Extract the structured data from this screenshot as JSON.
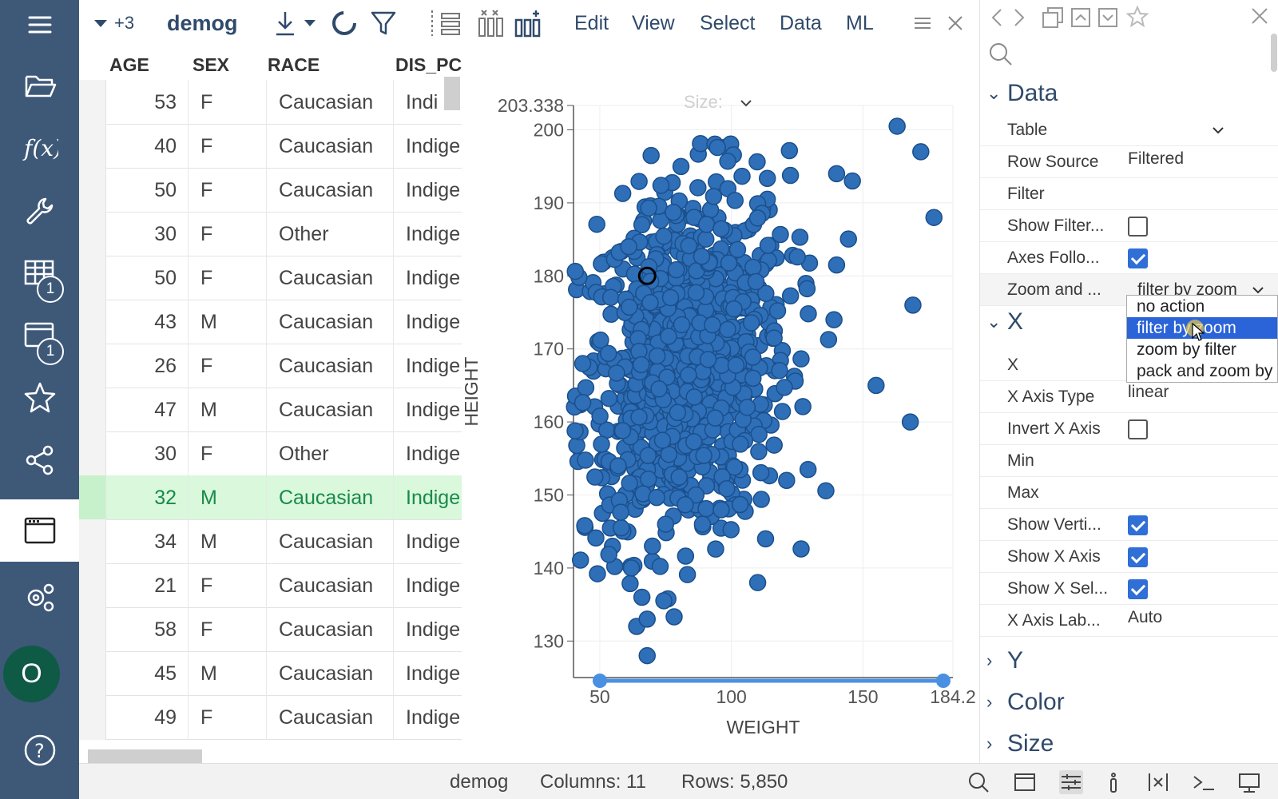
{
  "sidebar": {
    "items": [
      {
        "name": "hamburger-icon"
      },
      {
        "name": "folder-open-icon"
      },
      {
        "name": "function-icon"
      },
      {
        "name": "wrench-icon"
      },
      {
        "name": "table-icon",
        "badge": "1"
      },
      {
        "name": "window-icon",
        "badge": "1"
      },
      {
        "name": "star-icon"
      },
      {
        "name": "share-icon"
      },
      {
        "name": "panel-icon",
        "active": true
      },
      {
        "name": "settings-icon"
      }
    ],
    "avatar": "O",
    "help_icon": "help-icon"
  },
  "toolbar": {
    "more_count": "+3",
    "title": "demog",
    "menus": [
      "Edit",
      "View",
      "Select",
      "Data",
      "ML"
    ]
  },
  "grid": {
    "columns": [
      "AGE",
      "SEX",
      "RACE",
      "DIS_PC"
    ],
    "rows": [
      {
        "age": "53",
        "sex": "F",
        "race": "Caucasian",
        "dis": "Indi"
      },
      {
        "age": "40",
        "sex": "F",
        "race": "Caucasian",
        "dis": "Indige"
      },
      {
        "age": "50",
        "sex": "F",
        "race": "Caucasian",
        "dis": "Indige"
      },
      {
        "age": "30",
        "sex": "F",
        "race": "Other",
        "dis": "Indige"
      },
      {
        "age": "50",
        "sex": "F",
        "race": "Caucasian",
        "dis": "Indige"
      },
      {
        "age": "43",
        "sex": "M",
        "race": "Caucasian",
        "dis": "Indige"
      },
      {
        "age": "26",
        "sex": "F",
        "race": "Caucasian",
        "dis": "Indige"
      },
      {
        "age": "47",
        "sex": "M",
        "race": "Caucasian",
        "dis": "Indige"
      },
      {
        "age": "30",
        "sex": "F",
        "race": "Other",
        "dis": "Indige"
      },
      {
        "age": "32",
        "sex": "M",
        "race": "Caucasian",
        "dis": "Indige",
        "selected": true
      },
      {
        "age": "34",
        "sex": "M",
        "race": "Caucasian",
        "dis": "Indige"
      },
      {
        "age": "21",
        "sex": "F",
        "race": "Caucasian",
        "dis": "Indige"
      },
      {
        "age": "58",
        "sex": "F",
        "race": "Caucasian",
        "dis": "Indige"
      },
      {
        "age": "45",
        "sex": "M",
        "race": "Caucasian",
        "dis": "Indige"
      },
      {
        "age": "49",
        "sex": "F",
        "race": "Caucasian",
        "dis": "Indige"
      }
    ]
  },
  "scatter": {
    "size_label": "Size:",
    "color": "#2e6fb7",
    "chart_data": {
      "type": "scatter",
      "xlabel": "WEIGHT",
      "ylabel": "HEIGHT",
      "xlim": [
        40,
        184.2
      ],
      "ylim": [
        125,
        203.338
      ],
      "x_ticks": [
        "50",
        "100",
        "150",
        "184.2"
      ],
      "y_ticks": [
        "203.338",
        "200",
        "190",
        "180",
        "170",
        "160",
        "150",
        "140",
        "130"
      ],
      "cluster": {
        "x_center": 82,
        "y_center": 168,
        "x_spread": 22,
        "y_spread": 12,
        "count": 900
      },
      "outliers": [
        [
          163,
          200.5
        ],
        [
          172,
          197
        ],
        [
          146,
          193
        ],
        [
          140,
          194
        ],
        [
          177,
          188
        ],
        [
          140,
          181.5
        ],
        [
          169,
          176
        ],
        [
          168,
          160
        ],
        [
          155,
          165
        ],
        [
          139,
          174
        ],
        [
          61,
          184
        ],
        [
          57,
          154
        ],
        [
          64,
          132
        ],
        [
          70,
          143
        ],
        [
          75,
          146
        ],
        [
          89,
          146
        ],
        [
          113,
          144
        ],
        [
          62,
          140
        ],
        [
          66,
          136
        ],
        [
          68,
          133
        ],
        [
          68,
          128
        ],
        [
          110,
          138
        ],
        [
          106,
          162
        ],
        [
          121,
          152
        ]
      ],
      "highlighted_point": [
        68,
        180
      ]
    }
  },
  "panel": {
    "sections": {
      "data": "Data",
      "x": "X",
      "y": "Y",
      "color": "Color",
      "size": "Size"
    },
    "table_label": "Table",
    "row_source_label": "Row Source",
    "row_source_value": "Filtered",
    "filter_label": "Filter",
    "show_filter_label": "Show Filter...",
    "show_filter_checked": false,
    "axes_follow_label": "Axes Follo...",
    "axes_follow_checked": true,
    "zoom_label": "Zoom and ...",
    "zoom_value": "filter by zoom",
    "dropdown_options": [
      "no action",
      "filter by zoom",
      "zoom by filter",
      "pack and zoom by"
    ],
    "dropdown_highlighted": 1,
    "x_label": "X",
    "x_axis_type_label": "X Axis Type",
    "x_axis_type_value": "linear",
    "invert_x_label": "Invert X Axis",
    "invert_x_checked": false,
    "min_label": "Min",
    "max_label": "Max",
    "show_vert_label": "Show Verti...",
    "show_vert_checked": true,
    "show_x_axis_label": "Show X Axis",
    "show_x_axis_checked": true,
    "show_x_sel_label": "Show X Sel...",
    "show_x_sel_checked": true,
    "x_axis_lab_label": "X Axis Lab...",
    "x_axis_lab_value": "Auto"
  },
  "status": {
    "table": "demog",
    "columns": "Columns: 11",
    "rows": "Rows: 5,850"
  }
}
